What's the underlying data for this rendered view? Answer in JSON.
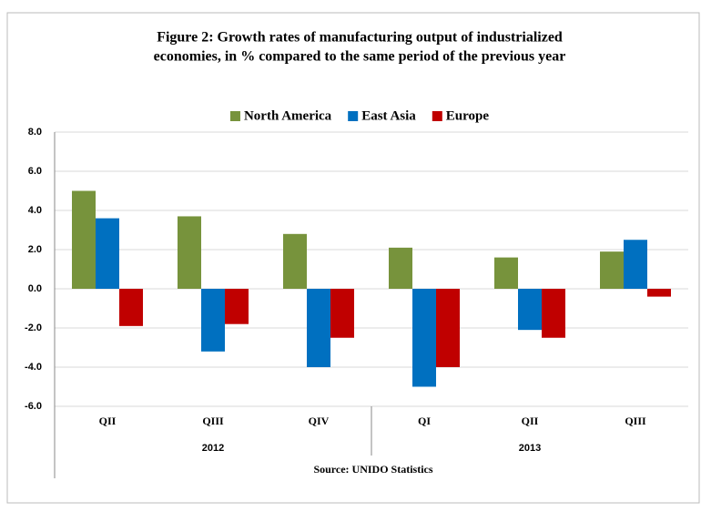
{
  "chart_data": {
    "type": "bar",
    "title": "Figure 2: Growth rates of manufacturing output of industrialized",
    "subtitle": "economies, in % compared to the same period of the previous year",
    "categories": [
      "QII",
      "QIII",
      "QIV",
      "QI",
      "QII",
      "QIII"
    ],
    "groups": [
      {
        "label": "2012",
        "count": 3
      },
      {
        "label": "2013",
        "count": 3
      }
    ],
    "series": [
      {
        "name": "North America",
        "color": "#77933c",
        "values": [
          5.0,
          3.7,
          2.8,
          2.1,
          1.6,
          1.9
        ]
      },
      {
        "name": "East Asia",
        "color": "#0070c0",
        "values": [
          3.6,
          -3.2,
          -4.0,
          -5.0,
          -2.1,
          2.5
        ]
      },
      {
        "name": "Europe",
        "color": "#c00000",
        "values": [
          -1.9,
          -1.8,
          -2.5,
          -4.0,
          -2.5,
          -0.4
        ]
      }
    ],
    "ylim": [
      -6,
      8
    ],
    "yticks": [
      {
        "value": -6,
        "label": "-6.0"
      },
      {
        "value": -4,
        "label": "-4.0"
      },
      {
        "value": -2,
        "label": "-2.0"
      },
      {
        "value": 0,
        "label": "0.0"
      },
      {
        "value": 2,
        "label": "2.0"
      },
      {
        "value": 4,
        "label": "4.0"
      },
      {
        "value": 6,
        "label": "6.0"
      },
      {
        "value": 8,
        "label": "8.0"
      }
    ],
    "grid": true,
    "legend": "top",
    "source": "Source: UNIDO Statistics"
  }
}
